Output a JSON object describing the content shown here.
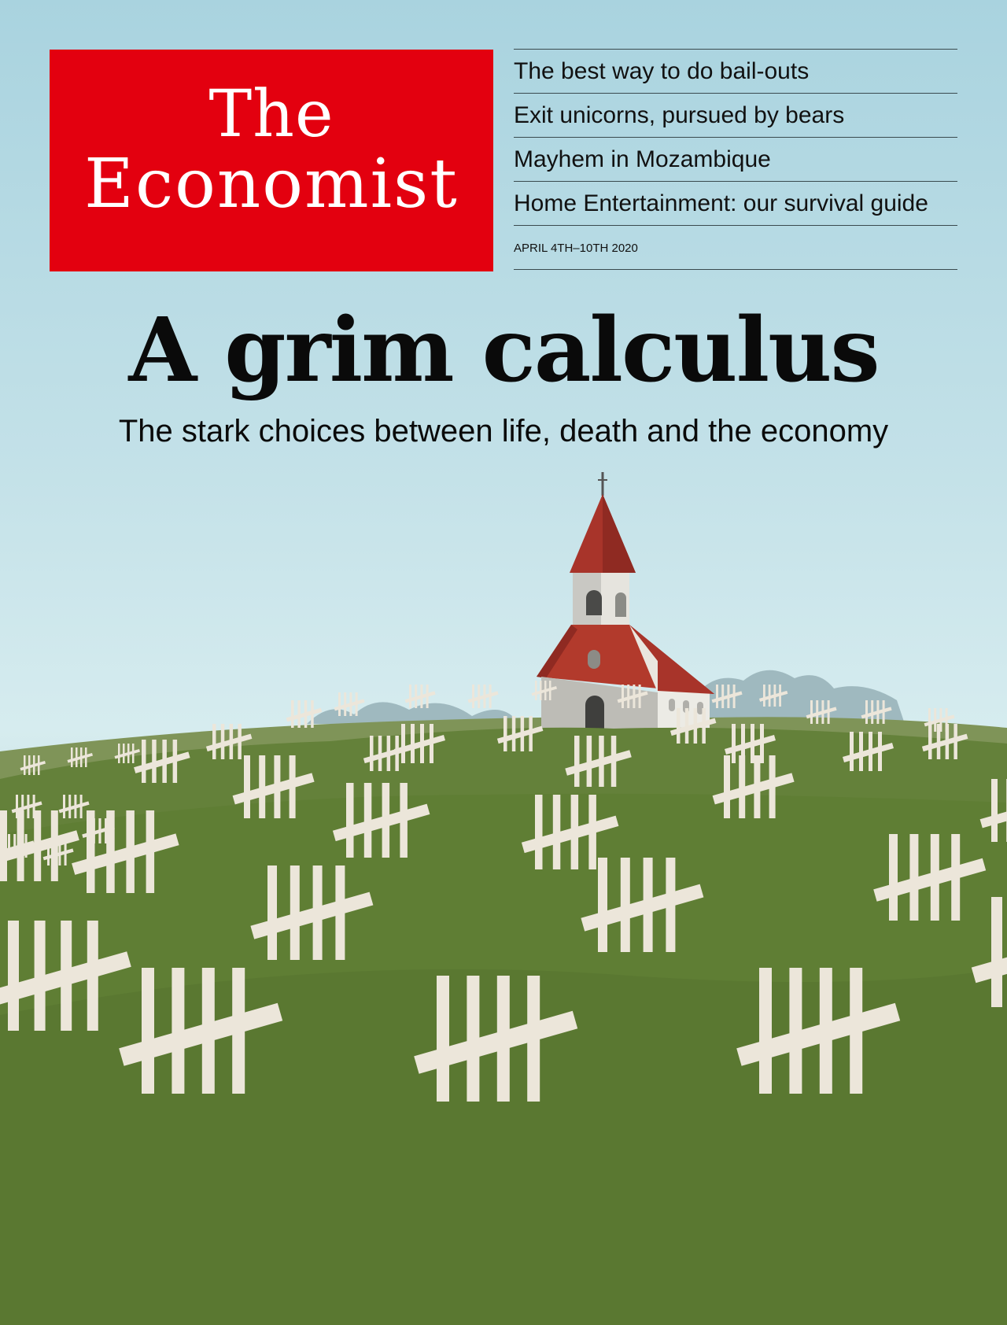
{
  "masthead": {
    "line1": "The",
    "line2": "Economist"
  },
  "teasers": [
    "The best way to do bail-outs",
    "Exit unicorns, pursued by bears",
    "Mayhem in Mozambique",
    "Home Entertainment: our survival guide"
  ],
  "issue_date": "APRIL 4TH–10TH 2020",
  "headline": "A grim calculus",
  "subhead": "The stark choices between life, death and the economy",
  "illustration": {
    "depicts": [
      "church",
      "green-hill",
      "tally-marks"
    ]
  },
  "colors": {
    "brand_red": "#e3000f",
    "sky": "#c3e1e8",
    "grass": "#5e7d33",
    "tally_marks": "#ece6da",
    "roof": "#a8342a"
  }
}
